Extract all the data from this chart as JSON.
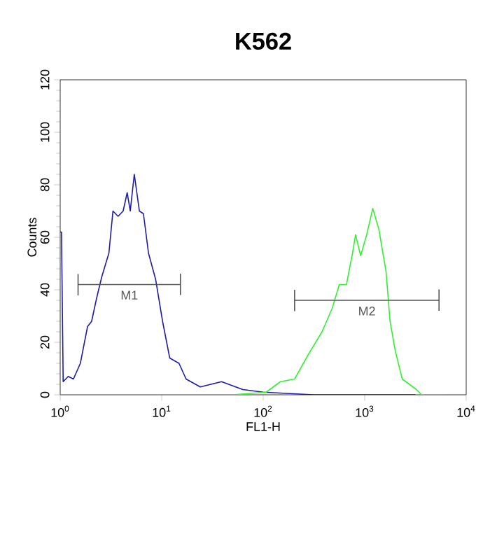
{
  "chart_data": {
    "type": "line",
    "title": "K562",
    "xlabel": "FL1-H",
    "ylabel": "Counts",
    "log": "x",
    "grid": false,
    "xlim": [
      1,
      10000
    ],
    "ylim": [
      0,
      120
    ],
    "xticks": [
      {
        "value": 1,
        "label": "10$^{0}$"
      },
      {
        "value": 10,
        "label": "10$^{1}$"
      },
      {
        "value": 100,
        "label": "10$^{2}$"
      },
      {
        "value": 1000,
        "label": "10$^{3}$"
      },
      {
        "value": 10000,
        "label": "10$^{4}$"
      }
    ],
    "yticks": [
      0,
      20,
      40,
      60,
      80,
      100,
      120
    ],
    "series": [
      {
        "color": "#1c1ca8",
        "x": [
          1,
          1.03,
          1.07,
          1.2,
          1.35,
          1.58,
          1.86,
          2.04,
          2.29,
          2.57,
          3.02,
          3.31,
          3.72,
          4.17,
          4.57,
          4.9,
          5.37,
          6.03,
          6.61,
          7.41,
          8.71,
          10.2,
          12,
          14.8,
          17.4,
          24,
          38.9,
          63,
          100,
          316,
          3162
        ],
        "values": [
          62,
          62,
          5,
          7,
          6,
          12,
          26,
          28,
          37,
          45,
          54,
          70,
          68,
          70,
          77,
          70,
          84,
          70,
          69,
          54,
          44,
          28,
          14,
          12,
          6,
          3,
          5,
          2,
          1,
          0,
          0
        ]
      },
      {
        "color": "#33f033",
        "x": [
          1,
          50,
          107,
          148,
          204,
          275,
          380,
          479,
          562,
          661,
          759,
          813,
          912,
          1047,
          1202,
          1380,
          1622,
          1778,
          1995,
          2344,
          3236,
          3631,
          6000
        ],
        "values": [
          0,
          0,
          1,
          5,
          6,
          15,
          24,
          33,
          42,
          42,
          54,
          61,
          53,
          61,
          71,
          63,
          47,
          28,
          17,
          6,
          2,
          0,
          0
        ]
      },
      {
        "type": "line",
        "color": "#555555",
        "x": [
          1.5,
          1.5,
          1.5,
          15.3,
          15.3,
          15.3
        ],
        "values": [
          46,
          38,
          42,
          42,
          46,
          38
        ]
      },
      {
        "type": "line",
        "color": "#555555",
        "x": [
          204,
          204,
          204,
          5400,
          5400,
          5400
        ],
        "values": [
          40,
          32,
          36,
          36,
          40,
          32
        ]
      }
    ],
    "annotations": [
      {
        "text": "M1",
        "x": 4.8,
        "y": 42
      },
      {
        "text": "M2",
        "x": 1050,
        "y": 36
      }
    ]
  }
}
